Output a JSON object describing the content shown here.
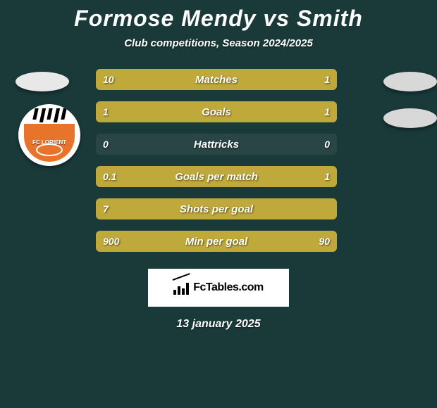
{
  "title": "Formose Mendy vs Smith",
  "subtitle": "Club competitions, Season 2024/2025",
  "date": "13 january 2025",
  "brand": "FcTables.com",
  "colors": {
    "background": "#1a3a3a",
    "left_bar": "#c0a93b",
    "right_bar": "#c0a93b",
    "empty_bar": "#2a4545",
    "ellipse_left": "#e8e8e8",
    "ellipse_right": "#d8d8d8",
    "logo_shield": "#e8742c"
  },
  "logo": {
    "name": "FC LORIENT",
    "shield_color": "#e8742c"
  },
  "rows": [
    {
      "label": "Matches",
      "left_val": "10",
      "right_val": "1",
      "left_pct": 80,
      "right_pct": 20
    },
    {
      "label": "Goals",
      "left_val": "1",
      "right_val": "1",
      "left_pct": 50,
      "right_pct": 50
    },
    {
      "label": "Hattricks",
      "left_val": "0",
      "right_val": "0",
      "left_pct": 0,
      "right_pct": 0
    },
    {
      "label": "Goals per match",
      "left_val": "0.1",
      "right_val": "1",
      "left_pct": 14,
      "right_pct": 86
    },
    {
      "label": "Shots per goal",
      "left_val": "7",
      "right_val": "",
      "left_pct": 100,
      "right_pct": 0
    },
    {
      "label": "Min per goal",
      "left_val": "900",
      "right_val": "90",
      "left_pct": 80,
      "right_pct": 20
    }
  ]
}
